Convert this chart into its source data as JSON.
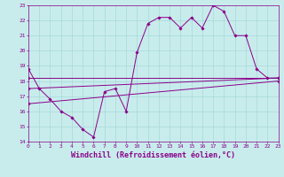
{
  "xlabel": "Windchill (Refroidissement éolien,°C)",
  "xlim": [
    0,
    23
  ],
  "ylim": [
    14,
    23
  ],
  "yticks": [
    14,
    15,
    16,
    17,
    18,
    19,
    20,
    21,
    22,
    23
  ],
  "xticks": [
    0,
    1,
    2,
    3,
    4,
    5,
    6,
    7,
    8,
    9,
    10,
    11,
    12,
    13,
    14,
    15,
    16,
    17,
    18,
    19,
    20,
    21,
    22,
    23
  ],
  "bg_color": "#c8ecec",
  "grid_color": "#a8d8d8",
  "line_color": "#8b008b",
  "line1_x": [
    0,
    1,
    2,
    3,
    4,
    5,
    6,
    7,
    8,
    9,
    10,
    11,
    12,
    13,
    14,
    15,
    16,
    17,
    18,
    19,
    20,
    21,
    22,
    23
  ],
  "line1_y": [
    18.8,
    17.5,
    16.8,
    16.0,
    15.6,
    14.8,
    14.3,
    17.3,
    17.5,
    16.0,
    19.9,
    21.8,
    22.2,
    22.2,
    21.5,
    22.2,
    21.5,
    23.0,
    22.6,
    21.0,
    21.0,
    18.8,
    18.2,
    18.2
  ],
  "line2_x": [
    0,
    23
  ],
  "line2_y": [
    17.5,
    18.2
  ],
  "line3_x": [
    0,
    23
  ],
  "line3_y": [
    18.2,
    18.2
  ],
  "line4_x": [
    0,
    23
  ],
  "line4_y": [
    16.5,
    18.0
  ],
  "font_color": "#8b008b",
  "tick_fontsize": 4.5,
  "xlabel_fontsize": 6.0
}
